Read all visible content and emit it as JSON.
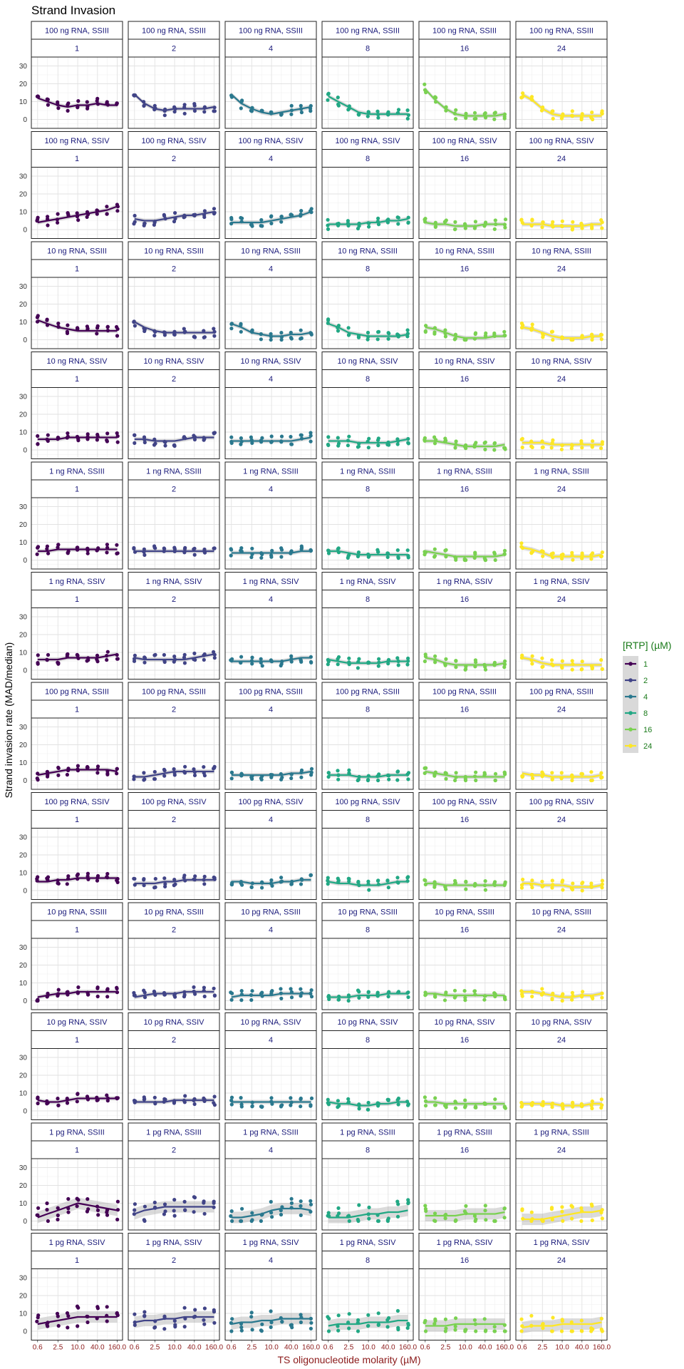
{
  "chart_data": {
    "type": "scatter",
    "title": "Strand Invasion",
    "xlabel": "TS oligonucleotide molarity (µM)",
    "ylabel": "Strand invasion rate (MAD/median)",
    "x_scale": "log",
    "x_ticks": [
      "0.6",
      "2.5",
      "10.0",
      "40.0",
      "160.0"
    ],
    "x_tick_values": [
      0.6,
      2.5,
      10,
      40,
      160
    ],
    "y_ticks": [
      "0",
      "10",
      "20",
      "30"
    ],
    "ylim": [
      -5,
      35
    ],
    "x_values": [
      0.6,
      1.2,
      2.5,
      5,
      10,
      20,
      40,
      80,
      160
    ],
    "grid": true,
    "smooth": "loess with confidence band",
    "legend": {
      "title": "[RTP] (µM)",
      "position": "right",
      "entries": [
        "1",
        "2",
        "4",
        "8",
        "16",
        "24"
      ]
    },
    "colors": {
      "1": "#440154",
      "2": "#414487",
      "4": "#2A788E",
      "8": "#22A884",
      "16": "#7AD151",
      "24": "#FDE725",
      "title_text": "#000000",
      "axis_title": "#8B1A1A",
      "legend_title": "#1A7A1A",
      "strip_text": "#1A1A7A"
    },
    "panel_rows": [
      {
        "label": "100 ng RNA, SSIII",
        "curves": [
          [
            12,
            10,
            8,
            7,
            8,
            8,
            9,
            8,
            8
          ],
          [
            14,
            9,
            6,
            5,
            6,
            6,
            6,
            6,
            7
          ],
          [
            14,
            9,
            6,
            4,
            3,
            4,
            5,
            6,
            7
          ],
          [
            13,
            10,
            7,
            4,
            3,
            3,
            3,
            3,
            3
          ],
          [
            17,
            11,
            6,
            3,
            2,
            2,
            2,
            2,
            3
          ],
          [
            14,
            11,
            6,
            3,
            2,
            2,
            2,
            2,
            2
          ]
        ]
      },
      {
        "label": "100 ng RNA, SSIV",
        "curves": [
          [
            4,
            5,
            6,
            7,
            8,
            9,
            10,
            11,
            13
          ],
          [
            6,
            5,
            5,
            6,
            7,
            8,
            8,
            9,
            10
          ],
          [
            4,
            4,
            4,
            4,
            5,
            6,
            7,
            8,
            10
          ],
          [
            3,
            3,
            3,
            3,
            4,
            4,
            5,
            5,
            6
          ],
          [
            4,
            3,
            3,
            2,
            2,
            2,
            3,
            3,
            3
          ],
          [
            3,
            3,
            3,
            2,
            2,
            2,
            2,
            3,
            3
          ]
        ]
      },
      {
        "label": "10 ng RNA, SSIII",
        "curves": [
          [
            11,
            9,
            7,
            6,
            5,
            5,
            5,
            5,
            5
          ],
          [
            10,
            7,
            5,
            4,
            4,
            4,
            4,
            4,
            4
          ],
          [
            9,
            7,
            4,
            3,
            2,
            2,
            3,
            3,
            4
          ],
          [
            9,
            7,
            4,
            3,
            2,
            2,
            2,
            2,
            3
          ],
          [
            7,
            6,
            4,
            2,
            1,
            1,
            1,
            2,
            2
          ],
          [
            7,
            6,
            4,
            2,
            1,
            1,
            1,
            2,
            2
          ]
        ]
      },
      {
        "label": "10 ng RNA, SSIV",
        "curves": [
          [
            6,
            6,
            6,
            7,
            7,
            7,
            7,
            7,
            7
          ],
          [
            6,
            6,
            5,
            5,
            5,
            6,
            7,
            7,
            7
          ],
          [
            5,
            5,
            5,
            5,
            5,
            5,
            5,
            6,
            7
          ],
          [
            5,
            5,
            5,
            4,
            4,
            4,
            4,
            5,
            6
          ],
          [
            5,
            5,
            4,
            3,
            2,
            2,
            2,
            2,
            3
          ],
          [
            4,
            4,
            4,
            3,
            3,
            3,
            3,
            3,
            3
          ]
        ]
      },
      {
        "label": "1 ng RNA, SSIII",
        "curves": [
          [
            5,
            5,
            6,
            6,
            6,
            6,
            6,
            6,
            6
          ],
          [
            5,
            5,
            5,
            5,
            5,
            5,
            5,
            5,
            5
          ],
          [
            4,
            4,
            4,
            4,
            4,
            4,
            4,
            5,
            5
          ],
          [
            5,
            5,
            4,
            3,
            3,
            3,
            3,
            3,
            3
          ],
          [
            5,
            4,
            3,
            2,
            2,
            2,
            2,
            2,
            3
          ],
          [
            7,
            6,
            4,
            2,
            2,
            2,
            2,
            2,
            3
          ]
        ]
      },
      {
        "label": "1 ng RNA, SSIV",
        "curves": [
          [
            6,
            6,
            6,
            7,
            7,
            7,
            7,
            8,
            9
          ],
          [
            7,
            6,
            6,
            6,
            6,
            6,
            7,
            8,
            9
          ],
          [
            5,
            5,
            5,
            5,
            5,
            5,
            6,
            7,
            7
          ],
          [
            6,
            5,
            4,
            4,
            4,
            4,
            5,
            5,
            5
          ],
          [
            7,
            6,
            4,
            3,
            3,
            3,
            3,
            3,
            4
          ],
          [
            7,
            6,
            4,
            3,
            3,
            3,
            3,
            3,
            3
          ]
        ]
      },
      {
        "label": "100 pg RNA, SSIII",
        "curves": [
          [
            3,
            4,
            5,
            6,
            6,
            6,
            6,
            6,
            5
          ],
          [
            2,
            2,
            3,
            4,
            5,
            5,
            5,
            5,
            5
          ],
          [
            3,
            3,
            3,
            3,
            3,
            3,
            4,
            4,
            5
          ],
          [
            3,
            3,
            3,
            2,
            2,
            2,
            3,
            3,
            3
          ],
          [
            5,
            4,
            3,
            2,
            2,
            2,
            2,
            2,
            2
          ],
          [
            4,
            3,
            3,
            2,
            2,
            2,
            2,
            2,
            3
          ]
        ]
      },
      {
        "label": "100 pg RNA, SSIV",
        "curves": [
          [
            5,
            5,
            6,
            6,
            7,
            7,
            7,
            7,
            7
          ],
          [
            4,
            4,
            4,
            5,
            5,
            6,
            6,
            6,
            6
          ],
          [
            5,
            5,
            4,
            4,
            4,
            5,
            5,
            6,
            6
          ],
          [
            5,
            4,
            4,
            3,
            3,
            3,
            4,
            5,
            5
          ],
          [
            4,
            4,
            3,
            3,
            3,
            3,
            3,
            3,
            3
          ],
          [
            4,
            4,
            3,
            3,
            3,
            2,
            2,
            2,
            3
          ]
        ]
      },
      {
        "label": "10 pg RNA, SSIII",
        "curves": [
          [
            2,
            3,
            4,
            4,
            5,
            5,
            5,
            5,
            5
          ],
          [
            2,
            3,
            4,
            4,
            4,
            5,
            5,
            5,
            5
          ],
          [
            2,
            3,
            3,
            3,
            3,
            4,
            4,
            4,
            4
          ],
          [
            2,
            2,
            2,
            3,
            3,
            3,
            4,
            4,
            4
          ],
          [
            4,
            4,
            3,
            3,
            3,
            3,
            3,
            3,
            3
          ],
          [
            5,
            5,
            4,
            3,
            2,
            2,
            3,
            3,
            4
          ]
        ]
      },
      {
        "label": "10 pg RNA, SSIV",
        "curves": [
          [
            6,
            5,
            5,
            6,
            7,
            7,
            7,
            7,
            7
          ],
          [
            5,
            5,
            5,
            5,
            6,
            6,
            6,
            6,
            6
          ],
          [
            5,
            5,
            5,
            5,
            5,
            5,
            5,
            5,
            5
          ],
          [
            5,
            4,
            4,
            3,
            3,
            4,
            4,
            5,
            5
          ],
          [
            5,
            5,
            4,
            4,
            4,
            4,
            4,
            4,
            4
          ],
          [
            4,
            4,
            4,
            4,
            3,
            3,
            3,
            4,
            4
          ]
        ]
      },
      {
        "label": "1 pg RNA, SSIII",
        "curves": [
          [
            2,
            4,
            6,
            8,
            10,
            9,
            8,
            7,
            6
          ],
          [
            4,
            6,
            7,
            8,
            8,
            8,
            8,
            8,
            8
          ],
          [
            2,
            2,
            3,
            4,
            6,
            7,
            7,
            7,
            6
          ],
          [
            2,
            2,
            2,
            3,
            4,
            4,
            5,
            5,
            6
          ],
          [
            3,
            3,
            3,
            3,
            4,
            4,
            4,
            4,
            5
          ],
          [
            1,
            1,
            1,
            2,
            3,
            4,
            5,
            5,
            6
          ]
        ]
      },
      {
        "label": "1 pg RNA, SSIV",
        "curves": [
          [
            4,
            5,
            6,
            7,
            8,
            8,
            8,
            8,
            8
          ],
          [
            5,
            6,
            6,
            7,
            7,
            8,
            8,
            8,
            8
          ],
          [
            4,
            5,
            5,
            6,
            6,
            7,
            7,
            7,
            7
          ],
          [
            3,
            4,
            4,
            4,
            5,
            5,
            5,
            6,
            6
          ],
          [
            3,
            3,
            3,
            4,
            4,
            4,
            4,
            4,
            4
          ],
          [
            2,
            3,
            3,
            3,
            4,
            4,
            4,
            4,
            5
          ]
        ]
      }
    ]
  }
}
